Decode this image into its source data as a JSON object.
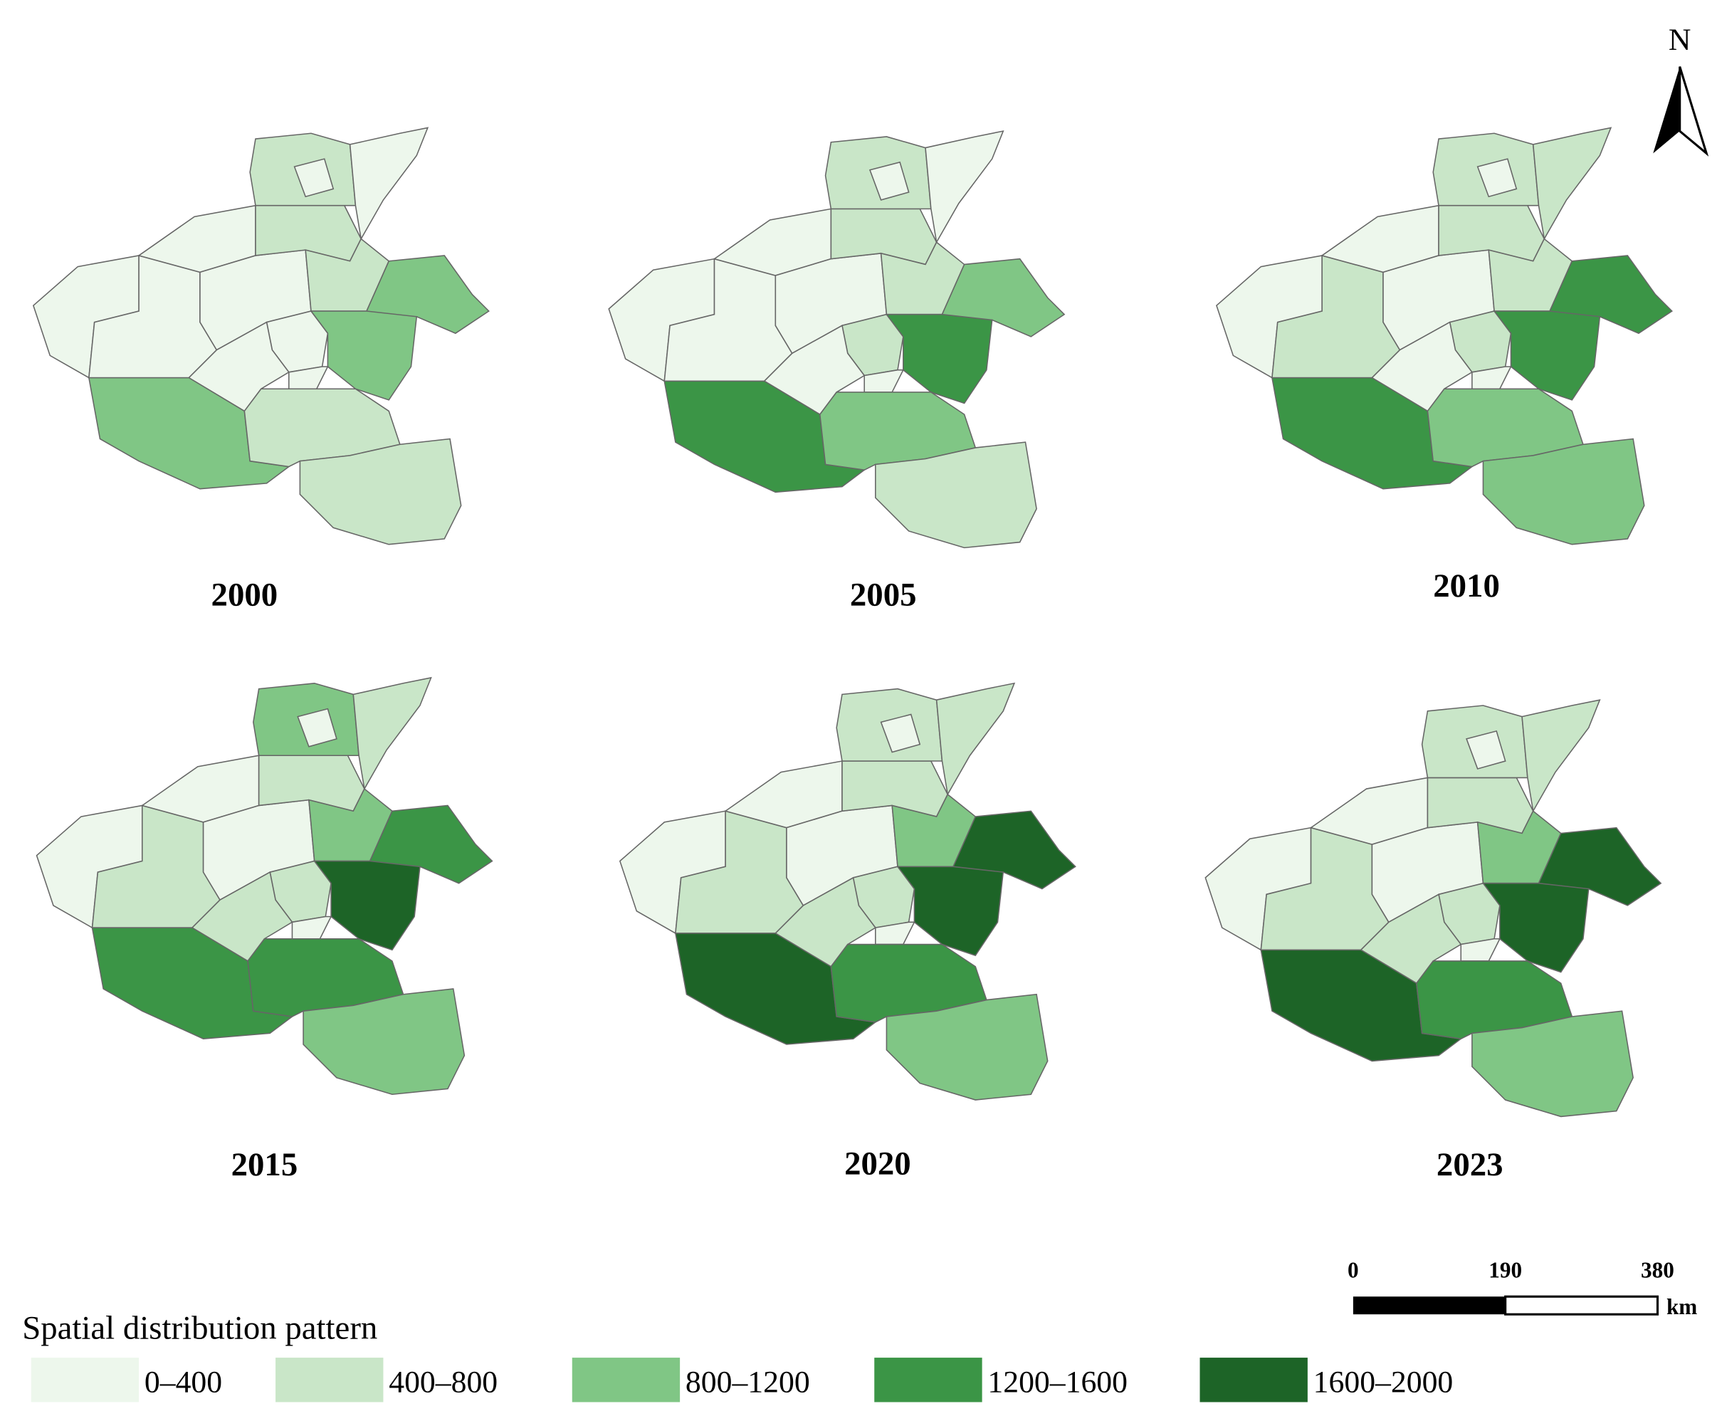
{
  "title": "Spatial distribution pattern",
  "north_label": "N",
  "legend": [
    {
      "label": "0–400",
      "color": "#edf7ec"
    },
    {
      "label": "400–800",
      "color": "#c9e6c8"
    },
    {
      "label": "800–1200",
      "color": "#80c685"
    },
    {
      "label": "1200–1600",
      "color": "#3b9546"
    },
    {
      "label": "1600–2000",
      "color": "#1d6427"
    }
  ],
  "scale_bar": {
    "ticks": [
      "0",
      "190",
      "380"
    ],
    "unit": "km"
  },
  "panels": [
    {
      "year": "2000",
      "regions": [
        0,
        0,
        0,
        0,
        1,
        1,
        0,
        0,
        1,
        2,
        0,
        2,
        0,
        0,
        2,
        1,
        1
      ]
    },
    {
      "year": "2005",
      "regions": [
        0,
        0,
        0,
        0,
        1,
        1,
        0,
        0,
        1,
        2,
        1,
        3,
        0,
        0,
        3,
        2,
        1
      ]
    },
    {
      "year": "2010",
      "regions": [
        0,
        1,
        0,
        0,
        1,
        1,
        0,
        1,
        1,
        3,
        1,
        3,
        0,
        0,
        3,
        2,
        2
      ]
    },
    {
      "year": "2015",
      "regions": [
        0,
        1,
        0,
        0,
        1,
        2,
        0,
        1,
        2,
        3,
        1,
        4,
        1,
        0,
        3,
        3,
        2
      ]
    },
    {
      "year": "2020",
      "regions": [
        0,
        1,
        0,
        0,
        1,
        1,
        0,
        1,
        2,
        4,
        1,
        4,
        1,
        0,
        4,
        3,
        2
      ]
    },
    {
      "year": "2023",
      "regions": [
        0,
        1,
        0,
        0,
        1,
        1,
        0,
        1,
        2,
        4,
        1,
        4,
        1,
        0,
        4,
        3,
        2
      ]
    }
  ]
}
